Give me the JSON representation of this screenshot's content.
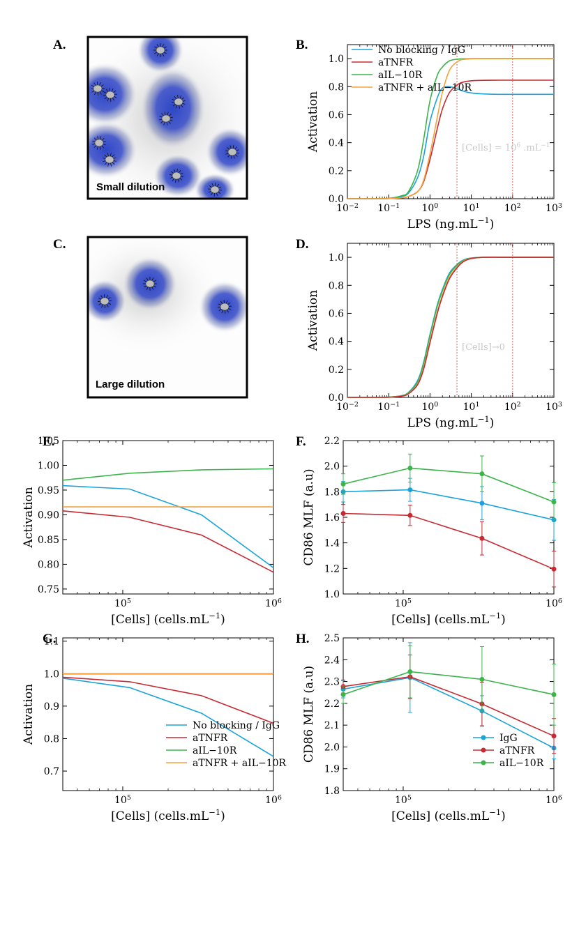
{
  "colors": {
    "no_blocking": "#1aa3db",
    "atnfr": "#c62a33",
    "ail10r": "#3cb44b",
    "combo": "#f5a03c",
    "threshold": "#e06060",
    "halo": "#2f47c8",
    "cell": "#bdbdbd"
  },
  "panels": {
    "A": {
      "letter": "A.",
      "caption": "Small dilution"
    },
    "B": {
      "letter": "B.",
      "annotation": "[Cells] = 10^6 .mL^-1"
    },
    "C": {
      "letter": "C.",
      "caption": "Large dilution"
    },
    "D": {
      "letter": "D.",
      "annotation": "[Cells]→0"
    },
    "E": {
      "letter": "E."
    },
    "F": {
      "letter": "F."
    },
    "G": {
      "letter": "G."
    },
    "H": {
      "letter": "H."
    }
  },
  "chart_data": [
    {
      "id": "B",
      "type": "line",
      "xlabel": "LPS (ng.mL^-1)",
      "ylabel": "Activation",
      "xscale": "log",
      "xlim": [
        0.01,
        1000
      ],
      "ylim": [
        0,
        1.1
      ],
      "xticks": [
        0.01,
        0.1,
        1,
        10,
        100,
        1000
      ],
      "xtick_labels": [
        "10^-2",
        "10^-1",
        "10^0",
        "10^1",
        "10^2",
        "10^3"
      ],
      "yticks": [
        "0.0",
        "0.2",
        "0.4",
        "0.6",
        "0.8",
        "1.0"
      ],
      "vlines": [
        4.5,
        100
      ],
      "legend": {
        "position": "top-left",
        "entries": [
          "No blocking / IgG",
          "aTNFR",
          "aIL−10R",
          "aTNFR + aIL−10R"
        ]
      },
      "x": [
        0.01,
        0.02,
        0.05,
        0.1,
        0.2,
        0.3,
        0.5,
        0.7,
        1,
        1.5,
        2,
        3,
        5,
        7,
        10,
        20,
        50,
        100,
        1000
      ],
      "series": [
        {
          "name": "No blocking / IgG",
          "color_key": "no_blocking",
          "values": [
            0,
            0,
            0,
            0.002,
            0.015,
            0.04,
            0.15,
            0.3,
            0.55,
            0.72,
            0.79,
            0.8,
            0.78,
            0.765,
            0.755,
            0.748,
            0.745,
            0.745,
            0.745
          ]
        },
        {
          "name": "aTNFR",
          "color_key": "atnfr",
          "values": [
            0,
            0,
            0,
            0.001,
            0.006,
            0.015,
            0.05,
            0.12,
            0.28,
            0.5,
            0.64,
            0.76,
            0.82,
            0.835,
            0.842,
            0.845,
            0.846,
            0.846,
            0.846
          ]
        },
        {
          "name": "aIL−10R",
          "color_key": "ail10r",
          "values": [
            0,
            0,
            0,
            0.002,
            0.02,
            0.05,
            0.2,
            0.42,
            0.7,
            0.88,
            0.94,
            0.985,
            0.997,
            0.999,
            1.0,
            1.0,
            1.0,
            1.0,
            1.0
          ]
        },
        {
          "name": "aTNFR + aIL−10R",
          "color_key": "combo",
          "values": [
            0,
            0,
            0,
            0.001,
            0.006,
            0.015,
            0.05,
            0.13,
            0.32,
            0.58,
            0.76,
            0.92,
            0.985,
            0.995,
            0.999,
            1.0,
            1.0,
            1.0,
            1.0
          ]
        }
      ]
    },
    {
      "id": "D",
      "type": "line",
      "xlabel": "LPS (ng.mL^-1)",
      "ylabel": "Activation",
      "xscale": "log",
      "xlim": [
        0.01,
        1000
      ],
      "ylim": [
        0,
        1.1
      ],
      "xticks": [
        0.01,
        0.1,
        1,
        10,
        100,
        1000
      ],
      "xtick_labels": [
        "10^-2",
        "10^-1",
        "10^0",
        "10^1",
        "10^2",
        "10^3"
      ],
      "yticks": [
        "0.0",
        "0.2",
        "0.4",
        "0.6",
        "0.8",
        "1.0"
      ],
      "vlines": [
        4.5,
        100
      ],
      "x": [
        0.01,
        0.05,
        0.1,
        0.2,
        0.3,
        0.5,
        0.7,
        1,
        1.5,
        2,
        3,
        5,
        7,
        10,
        20,
        100,
        1000
      ],
      "series": [
        {
          "name": "No blocking / IgG",
          "color_key": "no_blocking",
          "values": [
            0,
            0,
            0.002,
            0.012,
            0.035,
            0.12,
            0.25,
            0.45,
            0.66,
            0.77,
            0.89,
            0.96,
            0.985,
            0.995,
            1.0,
            1.0,
            1.0
          ]
        },
        {
          "name": "aIL−10R",
          "color_key": "ail10r",
          "values": [
            0,
            0,
            0.002,
            0.011,
            0.032,
            0.11,
            0.24,
            0.44,
            0.65,
            0.76,
            0.88,
            0.955,
            0.982,
            0.994,
            1.0,
            1.0,
            1.0
          ]
        },
        {
          "name": "aTNFR + aIL−10R",
          "color_key": "combo",
          "values": [
            0,
            0,
            0.001,
            0.009,
            0.027,
            0.095,
            0.21,
            0.4,
            0.61,
            0.73,
            0.86,
            0.945,
            0.978,
            0.992,
            1.0,
            1.0,
            1.0
          ]
        },
        {
          "name": "aTNFR",
          "color_key": "atnfr",
          "values": [
            0,
            0,
            0.001,
            0.008,
            0.025,
            0.09,
            0.2,
            0.39,
            0.6,
            0.72,
            0.85,
            0.94,
            0.975,
            0.991,
            1.0,
            1.0,
            1.0
          ]
        }
      ]
    },
    {
      "id": "E",
      "type": "line",
      "xlabel": "[Cells] (cells.mL^-1)",
      "ylabel": "Activation",
      "xscale": "log",
      "xlim": [
        40000,
        1000000
      ],
      "ylim": [
        0.74,
        1.05
      ],
      "xticks": [
        100000,
        1000000
      ],
      "xtick_labels": [
        "10^5",
        "10^6"
      ],
      "yticks": [
        "0.75",
        "0.80",
        "0.85",
        "0.90",
        "0.95",
        "1.00",
        "1.05"
      ],
      "x": [
        40000,
        111111,
        333333,
        1000000
      ],
      "series": [
        {
          "name": "No blocking / IgG",
          "color_key": "no_blocking",
          "values": [
            0.959,
            0.952,
            0.9,
            0.793
          ]
        },
        {
          "name": "aTNFR",
          "color_key": "atnfr",
          "values": [
            0.908,
            0.895,
            0.859,
            0.784
          ]
        },
        {
          "name": "aIL−10R",
          "color_key": "ail10r",
          "values": [
            0.97,
            0.984,
            0.991,
            0.993
          ]
        },
        {
          "name": "aTNFR + aIL−10R",
          "color_key": "combo",
          "values": [
            0.916,
            0.916,
            0.916,
            0.916
          ]
        }
      ]
    },
    {
      "id": "F",
      "type": "line",
      "xlabel": "[Cells] (cells.mL^-1)",
      "ylabel": "CD86 MLF (a.u)",
      "xscale": "log",
      "xlim": [
        40000,
        1000000
      ],
      "ylim": [
        1.0,
        2.2
      ],
      "xticks": [
        100000,
        1000000
      ],
      "xtick_labels": [
        "10^5",
        "10^6"
      ],
      "yticks": [
        "1.0",
        "1.2",
        "1.4",
        "1.6",
        "1.8",
        "2.0",
        "2.2"
      ],
      "x": [
        40000,
        111111,
        333333,
        1000000
      ],
      "series": [
        {
          "name": "IgG",
          "color_key": "no_blocking",
          "values": [
            1.8,
            1.815,
            1.71,
            1.58
          ],
          "errors": [
            0.08,
            0.09,
            0.13,
            0.16
          ]
        },
        {
          "name": "aTNFR",
          "color_key": "atnfr",
          "values": [
            1.63,
            1.615,
            1.435,
            1.195
          ],
          "errors": [
            0.07,
            0.08,
            0.13,
            0.14
          ]
        },
        {
          "name": "aIL−10R",
          "color_key": "ail10r",
          "values": [
            1.86,
            1.985,
            1.94,
            1.72
          ],
          "errors": [
            0.08,
            0.11,
            0.14,
            0.15
          ]
        }
      ]
    },
    {
      "id": "G",
      "type": "line",
      "xlabel": "[Cells] (cells.mL^-1)",
      "ylabel": "Activation",
      "xscale": "log",
      "xlim": [
        40000,
        1000000
      ],
      "ylim": [
        0.64,
        1.11
      ],
      "xticks": [
        100000,
        1000000
      ],
      "xtick_labels": [
        "10^5",
        "10^6"
      ],
      "yticks": [
        "0.7",
        "0.8",
        "0.9",
        "1.0",
        "1.1"
      ],
      "legend": {
        "position": "bottom-right",
        "entries": [
          "No blocking / IgG",
          "aTNFR",
          "aIL−10R",
          "aTNFR + aIL−10R"
        ]
      },
      "x": [
        40000,
        111111,
        333333,
        1000000
      ],
      "series": [
        {
          "name": "No blocking / IgG",
          "color_key": "no_blocking",
          "values": [
            0.986,
            0.957,
            0.878,
            0.745
          ]
        },
        {
          "name": "aTNFR",
          "color_key": "atnfr",
          "values": [
            0.989,
            0.975,
            0.932,
            0.847
          ]
        },
        {
          "name": "aIL−10R",
          "color_key": "ail10r",
          "values": [
            0.999,
            0.999,
            0.999,
            0.999
          ]
        },
        {
          "name": "aTNFR + aIL−10R",
          "color_key": "combo",
          "values": [
            1.0,
            1.0,
            1.0,
            1.0
          ]
        }
      ]
    },
    {
      "id": "H",
      "type": "line",
      "xlabel": "[Cells] (cells.mL^-1)",
      "ylabel": "CD86 MLF (a.u)",
      "xscale": "log",
      "xlim": [
        40000,
        1000000
      ],
      "ylim": [
        1.8,
        2.5
      ],
      "xticks": [
        100000,
        1000000
      ],
      "xtick_labels": [
        "10^5",
        "10^6"
      ],
      "yticks": [
        "1.8",
        "1.9",
        "2.0",
        "2.1",
        "2.2",
        "2.3",
        "2.4",
        "2.5"
      ],
      "legend": {
        "position": "bottom-right",
        "entries": [
          "IgG",
          "aTNFR",
          "aIL−10R"
        ]
      },
      "x": [
        40000,
        111111,
        333333,
        1000000
      ],
      "series": [
        {
          "name": "IgG",
          "color_key": "no_blocking",
          "values": [
            2.265,
            2.318,
            2.165,
            1.995
          ],
          "errors": [
            0.04,
            0.16,
            0.07,
            0.05
          ]
        },
        {
          "name": "aTNFR",
          "color_key": "atnfr",
          "values": [
            2.277,
            2.322,
            2.197,
            2.05
          ],
          "errors": [
            0.03,
            0.1,
            0.1,
            0.08
          ]
        },
        {
          "name": "aIL−10R",
          "color_key": "ail10r",
          "values": [
            2.24,
            2.345,
            2.31,
            2.24
          ],
          "errors": [
            0.04,
            0.12,
            0.15,
            0.14
          ]
        }
      ]
    }
  ]
}
